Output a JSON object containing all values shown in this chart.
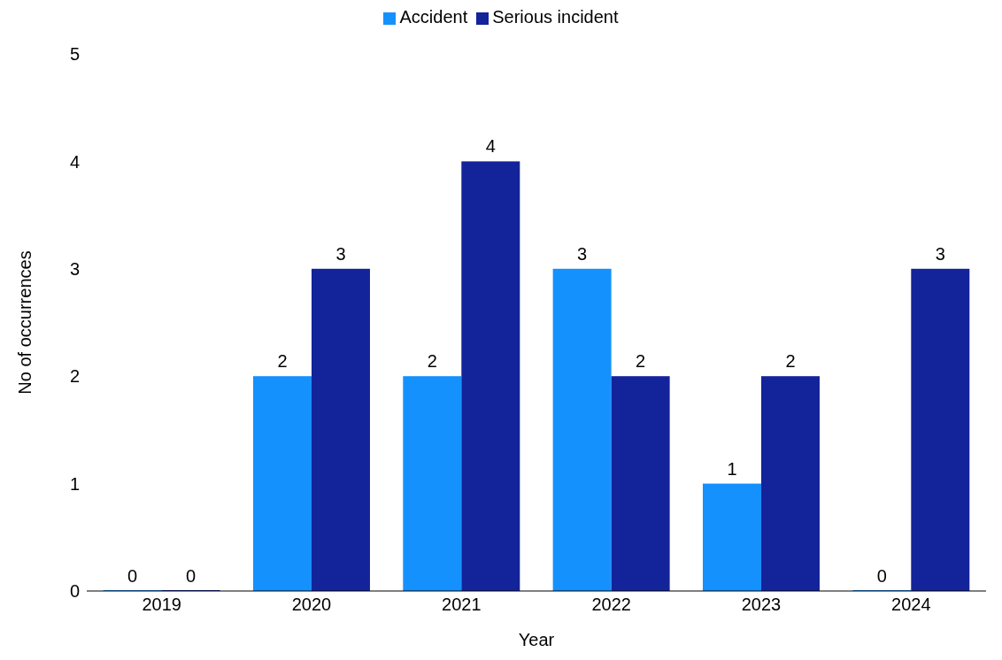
{
  "chart_data": {
    "type": "bar",
    "categories": [
      "2019",
      "2020",
      "2021",
      "2022",
      "2023",
      "2024"
    ],
    "series": [
      {
        "name": "Accident",
        "color": "#1591fe",
        "values": [
          0,
          2,
          2,
          3,
          1,
          0
        ]
      },
      {
        "name": "Serious incident",
        "color": "#13239a",
        "values": [
          0,
          3,
          4,
          2,
          2,
          3
        ]
      }
    ],
    "xlabel": "Year",
    "ylabel": "No of occurrences",
    "ylim": [
      0,
      5
    ],
    "yticks": [
      0,
      1,
      2,
      3,
      4,
      5
    ],
    "grid": false,
    "legend": "top",
    "data_labels": true
  }
}
